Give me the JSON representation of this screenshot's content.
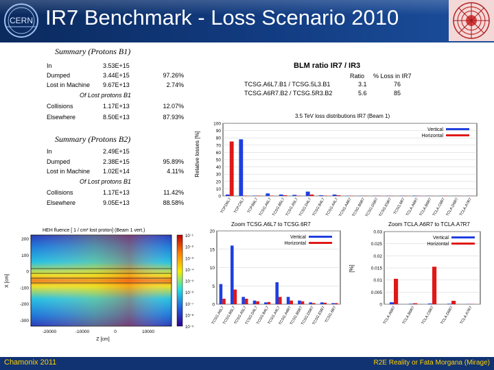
{
  "slide": {
    "title": "IR7 Benchmark - Loss Scenario 2010",
    "logo_text": "CERN",
    "footer_left": "Chamonix 2011",
    "footer_right": "R2E Reality or Fata Morgana (Mirage)"
  },
  "summary_b1": {
    "title": "Summary (Protons B1)",
    "rows": [
      {
        "label": "In",
        "value": "3.53E+15",
        "pct": ""
      },
      {
        "label": "Dumped",
        "value": "3.44E+15",
        "pct": "97.26%"
      },
      {
        "label": "Lost in Machine",
        "value": "9.67E+13",
        "pct": "2.74%"
      }
    ],
    "subheader": "Of Lost protons B1",
    "sub_rows": [
      {
        "label": "Collisions",
        "value": "1.17E+13",
        "pct": "12.07%"
      },
      {
        "label": "Elsewhere",
        "value": "8.50E+13",
        "pct": "87.93%"
      }
    ]
  },
  "summary_b2": {
    "title": "Summary (Protons B2)",
    "rows": [
      {
        "label": "In",
        "value": "2.49E+15",
        "pct": ""
      },
      {
        "label": "Dumped",
        "value": "2.38E+15",
        "pct": "95.89%"
      },
      {
        "label": "Lost in Machine",
        "value": "1.02E+14",
        "pct": "4.11%"
      }
    ],
    "subheader": "Of Lost protons B1",
    "sub_rows": [
      {
        "label": "Collisions",
        "value": "1.17E+13",
        "pct": "11.42%"
      },
      {
        "label": "Elsewhere",
        "value": "9.05E+13",
        "pct": "88.58%"
      }
    ]
  },
  "blm": {
    "title": "BLM ratio IR7 / IR3",
    "header_ratio": "Ratio",
    "header_loss": "% Loss in IR7",
    "rows": [
      {
        "label": "TCSG.A6L7.B1 / TCSG.5L3.B1",
        "ratio": "3.1",
        "loss": "76"
      },
      {
        "label": "TCSG.A6R7.B2 / TCSG.5R3.B2",
        "ratio": "5.6",
        "loss": "85"
      }
    ]
  },
  "colors": {
    "vertical": "#1f3fe0",
    "horizontal": "#e01818",
    "header_bg": "#123c82",
    "footer_text": "#ffd400"
  },
  "chart_data": [
    {
      "type": "bar",
      "title": "3.5 TeV loss distributions IR7 (Beam 1)",
      "ylabel": "Relative losses [%]",
      "ylim": [
        0,
        100
      ],
      "yticks": [
        "0",
        "10",
        "20",
        "30",
        "40",
        "50",
        "60",
        "70",
        "80",
        "90",
        "100"
      ],
      "legend": [
        "Vertical",
        "Horizontal"
      ],
      "categories": [
        "TCP.D6L7",
        "TCP.C6L7",
        "TCP.B6L7",
        "TCSG.A6L7",
        "TCSG.B5L7",
        "TCSG.A5L7",
        "TCSG.D4L7",
        "TCSG.B4L7",
        "TCSG.A4L7",
        "TCSG.A4R7",
        "TCSG.B5R7",
        "TCSG.D5R7",
        "TCSG.E5R7",
        "TCSG.6R7",
        "TCLA.A6R7",
        "TCLA.B6R7",
        "TCLA.C6R7",
        "TCLA.D6R7",
        "TCLA.A7R7"
      ],
      "series": [
        {
          "name": "Vertical",
          "values": [
            2,
            78,
            0.5,
            3.5,
            2,
            1.5,
            6,
            1,
            2,
            0.3,
            0.3,
            0.3,
            0.3,
            0.3,
            0.5,
            0.2,
            0.2,
            0.2,
            0.2
          ]
        },
        {
          "name": "Horizontal",
          "values": [
            75,
            0.5,
            0.5,
            0.5,
            1,
            0.5,
            2,
            0.5,
            1,
            0.3,
            0.3,
            0.3,
            0.3,
            0.3,
            0.3,
            0.2,
            0.3,
            0.2,
            0.2
          ]
        }
      ]
    },
    {
      "type": "bar",
      "title": "Zoom TCSG.A6L7 to TCSG.6R7",
      "ylim": [
        0,
        20
      ],
      "yticks": [
        "0",
        "5",
        "10",
        "15",
        "20"
      ],
      "legend": [
        "Vertical",
        "Horizontal"
      ],
      "categories": [
        "TCSG.A6L7",
        "TCSG.B5L7",
        "TCSG.A5L7",
        "TCSG.D4L7",
        "TCSG.B4L7",
        "TCSG.A4L7",
        "TCSG.A4R7",
        "TCSG.B5R7",
        "TCSG.D5R7",
        "TCSG.E5R7",
        "TCSG.6R7"
      ],
      "series": [
        {
          "name": "Vertical",
          "values": [
            5.5,
            16,
            2,
            1,
            0.5,
            6,
            2,
            1,
            0.5,
            0.5,
            0.3
          ]
        },
        {
          "name": "Horizontal",
          "values": [
            1.5,
            4,
            1.5,
            0.8,
            0.6,
            2,
            1,
            0.8,
            0.3,
            0.4,
            0.3
          ]
        }
      ]
    },
    {
      "type": "bar",
      "title": "Zoom TCLA.A6R7 to TCLA.A7R7",
      "ylabel": "[%]",
      "ylim": [
        0,
        0.03
      ],
      "yticks": [
        "0",
        "0.005",
        "0.01",
        "0.015",
        "0.02",
        "0.025",
        "0.03"
      ],
      "legend": [
        "Vertical",
        "Horizontal"
      ],
      "categories": [
        "TCLA.A6R7",
        "TCLA.B6R7",
        "TCLA.C6R7",
        "TCLA.D6R7",
        "TCLA.A7R7"
      ],
      "series": [
        {
          "name": "Vertical",
          "values": [
            0.0008,
            0.0002,
            0.0003,
            0.0002,
            0.0001
          ]
        },
        {
          "name": "Horizontal",
          "values": [
            0.0105,
            0.0004,
            0.0155,
            0.0014,
            0.0001
          ]
        }
      ]
    },
    {
      "type": "heatmap",
      "title": "HEH fluence [ 1 / cm² lost proton] (Beam 1 vert.)",
      "xlabel": "Z [cm]",
      "ylabel": "X [cm]",
      "xticks": [
        "-20000",
        "-10000",
        "0",
        "10000"
      ],
      "yticks": [
        "200",
        "100",
        "0",
        "-100",
        "-200",
        "-300"
      ],
      "colorbar": [
        "10⁻¹",
        "10⁻²",
        "10⁻³",
        "10⁻⁴",
        "10⁻⁵",
        "10⁻⁶",
        "10⁻⁷",
        "10⁻⁸",
        "10⁻⁹"
      ]
    }
  ]
}
